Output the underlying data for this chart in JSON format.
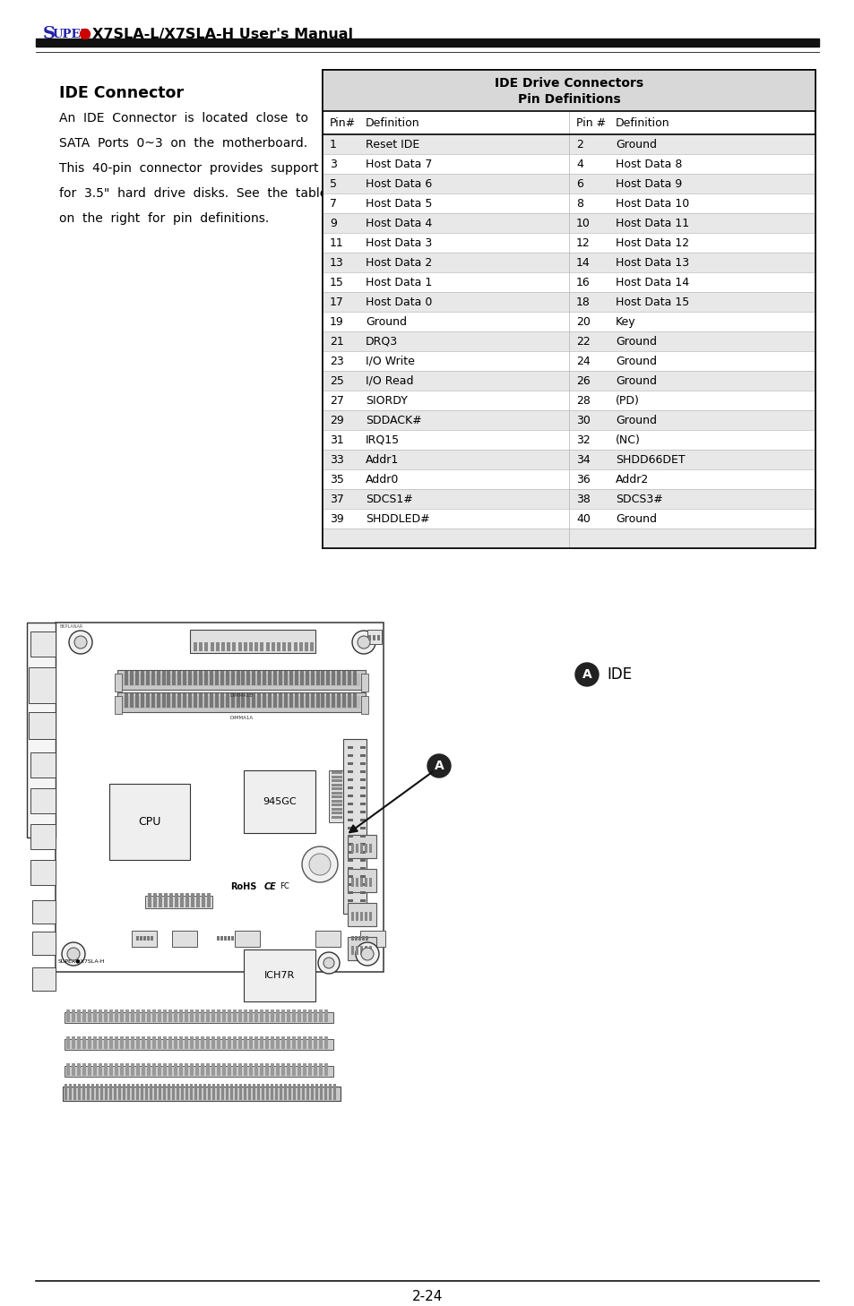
{
  "title_header": "X7SLA-L/X7SLA-H User's Manual",
  "page_number": "2-24",
  "section_title": "IDE Connector",
  "desc_lines": [
    "An  IDE  Connector  is  located  close  to",
    "SATA  Ports  0~3  on  the  motherboard.",
    "This  40-pin  connector  provides  support",
    "for  3.5\"  hard  drive  disks.  See  the  table",
    "on  the  right  for  pin  definitions."
  ],
  "table_title_line1": "IDE Drive Connectors",
  "table_title_line2": "Pin Definitions",
  "table_header": [
    "Pin#",
    "Definition",
    "Pin #",
    "Definition"
  ],
  "table_rows": [
    [
      "1",
      "Reset IDE",
      "2",
      "Ground"
    ],
    [
      "3",
      "Host Data 7",
      "4",
      "Host Data 8"
    ],
    [
      "5",
      "Host Data 6",
      "6",
      "Host Data 9"
    ],
    [
      "7",
      "Host Data 5",
      "8",
      "Host Data 10"
    ],
    [
      "9",
      "Host Data 4",
      "10",
      "Host Data 11"
    ],
    [
      "11",
      "Host Data 3",
      "12",
      "Host Data 12"
    ],
    [
      "13",
      "Host Data 2",
      "14",
      "Host Data 13"
    ],
    [
      "15",
      "Host Data 1",
      "16",
      "Host Data 14"
    ],
    [
      "17",
      "Host Data 0",
      "18",
      "Host Data 15"
    ],
    [
      "19",
      "Ground",
      "20",
      "Key"
    ],
    [
      "21",
      "DRQ3",
      "22",
      "Ground"
    ],
    [
      "23",
      "I/O Write",
      "24",
      "Ground"
    ],
    [
      "25",
      "I/O Read",
      "26",
      "Ground"
    ],
    [
      "27",
      "SIORDY",
      "28",
      "(PD)"
    ],
    [
      "29",
      "SDDACK#",
      "30",
      "Ground"
    ],
    [
      "31",
      "IRQ15",
      "32",
      "(NC)"
    ],
    [
      "33",
      "Addr1",
      "34",
      "SHDD66DET"
    ],
    [
      "35",
      "Addr0",
      "36",
      "Addr2"
    ],
    [
      "37",
      "SDCS1#",
      "38",
      "SDCS3#"
    ],
    [
      "39",
      "SHDDLED#",
      "40",
      "Ground"
    ],
    [
      "",
      "",
      "",
      ""
    ]
  ],
  "shaded_rows": [
    0,
    2,
    4,
    6,
    8,
    10,
    12,
    14,
    16,
    18,
    20
  ],
  "bg_color": "#ffffff",
  "row_shade": "#e8e8e8",
  "title_shade": "#d8d8d8",
  "label_A_text": "IDE"
}
